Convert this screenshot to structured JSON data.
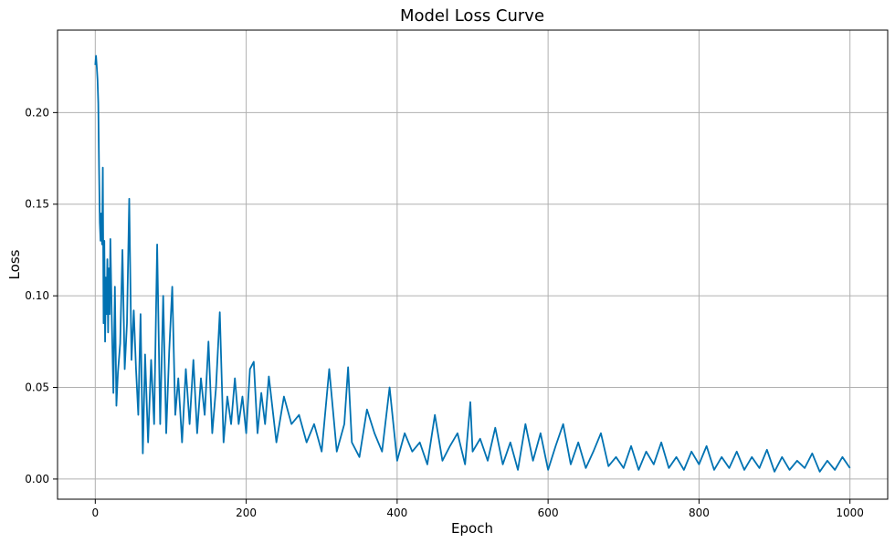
{
  "chart_data": {
    "type": "line",
    "title": "Model Loss Curve",
    "xlabel": "Epoch",
    "ylabel": "Loss",
    "xlim": [
      -50,
      1050
    ],
    "ylim": [
      -0.011,
      0.245
    ],
    "xticks": [
      0,
      200,
      400,
      600,
      800,
      1000
    ],
    "xtick_labels": [
      "0",
      "200",
      "400",
      "600",
      "800",
      "1000"
    ],
    "yticks": [
      0.0,
      0.05,
      0.1,
      0.15,
      0.2
    ],
    "ytick_labels": [
      "0.00",
      "0.05",
      "0.10",
      "0.15",
      "0.20"
    ],
    "grid": true,
    "line_color": "#0072b2",
    "series": [
      {
        "description": "Noisy loss per epoch, epochs 0-1000 (key points read from plot)",
        "x": [
          0,
          1,
          2,
          3,
          4,
          5,
          6,
          7,
          8,
          9,
          10,
          11,
          12,
          13,
          14,
          15,
          16,
          17,
          18,
          19,
          20,
          22,
          24,
          26,
          28,
          30,
          33,
          36,
          39,
          42,
          45,
          48,
          51,
          54,
          57,
          60,
          63,
          66,
          70,
          74,
          78,
          82,
          86,
          90,
          94,
          98,
          102,
          106,
          110,
          115,
          120,
          125,
          130,
          135,
          140,
          145,
          150,
          155,
          160,
          165,
          170,
          175,
          180,
          185,
          190,
          195,
          200,
          205,
          210,
          215,
          220,
          225,
          230,
          240,
          250,
          260,
          270,
          280,
          290,
          300,
          310,
          320,
          330,
          335,
          340,
          350,
          360,
          370,
          380,
          390,
          400,
          410,
          420,
          430,
          440,
          450,
          460,
          470,
          480,
          490,
          497,
          500,
          510,
          520,
          530,
          540,
          550,
          560,
          570,
          580,
          590,
          600,
          610,
          620,
          630,
          640,
          650,
          660,
          670,
          680,
          690,
          700,
          710,
          720,
          730,
          740,
          750,
          760,
          770,
          780,
          790,
          800,
          810,
          820,
          830,
          840,
          850,
          860,
          870,
          880,
          890,
          900,
          910,
          920,
          930,
          940,
          950,
          960,
          970,
          980,
          990,
          1000
        ],
        "values": [
          0.226,
          0.231,
          0.225,
          0.218,
          0.205,
          0.17,
          0.14,
          0.13,
          0.145,
          0.128,
          0.17,
          0.085,
          0.13,
          0.075,
          0.11,
          0.09,
          0.12,
          0.08,
          0.115,
          0.09,
          0.131,
          0.085,
          0.047,
          0.105,
          0.04,
          0.058,
          0.074,
          0.125,
          0.06,
          0.085,
          0.153,
          0.065,
          0.092,
          0.06,
          0.035,
          0.09,
          0.014,
          0.068,
          0.02,
          0.065,
          0.03,
          0.128,
          0.03,
          0.1,
          0.025,
          0.07,
          0.105,
          0.035,
          0.055,
          0.02,
          0.06,
          0.03,
          0.065,
          0.025,
          0.055,
          0.035,
          0.075,
          0.025,
          0.05,
          0.091,
          0.02,
          0.045,
          0.03,
          0.055,
          0.03,
          0.045,
          0.025,
          0.06,
          0.064,
          0.025,
          0.047,
          0.03,
          0.056,
          0.02,
          0.045,
          0.03,
          0.035,
          0.02,
          0.03,
          0.015,
          0.06,
          0.015,
          0.03,
          0.061,
          0.02,
          0.012,
          0.038,
          0.025,
          0.015,
          0.05,
          0.01,
          0.025,
          0.015,
          0.02,
          0.008,
          0.035,
          0.01,
          0.018,
          0.025,
          0.008,
          0.042,
          0.015,
          0.022,
          0.01,
          0.028,
          0.008,
          0.02,
          0.005,
          0.03,
          0.01,
          0.025,
          0.005,
          0.018,
          0.03,
          0.008,
          0.02,
          0.006,
          0.015,
          0.025,
          0.007,
          0.012,
          0.006,
          0.018,
          0.005,
          0.015,
          0.008,
          0.02,
          0.006,
          0.012,
          0.005,
          0.015,
          0.008,
          0.018,
          0.005,
          0.012,
          0.006,
          0.015,
          0.005,
          0.012,
          0.006,
          0.016,
          0.004,
          0.012,
          0.005,
          0.01,
          0.006,
          0.014,
          0.004,
          0.01,
          0.005,
          0.012,
          0.006
        ]
      }
    ]
  }
}
